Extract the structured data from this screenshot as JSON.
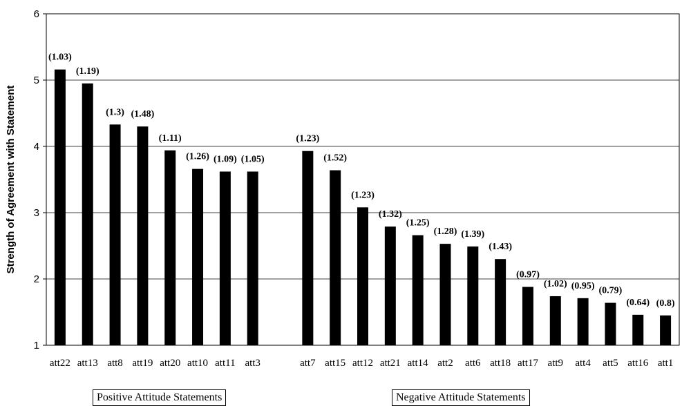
{
  "chart_data": {
    "type": "bar",
    "ylabel": "Strength of Agreement with Statement",
    "xlabel": "",
    "ylim": [
      1,
      6
    ],
    "yticks": [
      1,
      2,
      3,
      4,
      5,
      6
    ],
    "grid": true,
    "legend": "none",
    "bar_color": "#000000",
    "groups": [
      {
        "label": "Positive Attitude Statements",
        "categories": [
          "att22",
          "att13",
          "att8",
          "att19",
          "att20",
          "att10",
          "att11",
          "att3"
        ],
        "values": [
          5.16,
          4.95,
          4.33,
          4.3,
          3.94,
          3.66,
          3.62,
          3.62
        ],
        "sd_labels": [
          "(1.03)",
          "(1.19)",
          "(1.3)",
          "(1.48)",
          "(1.11)",
          "(1.26)",
          "(1.09)",
          "(1.05)"
        ]
      },
      {
        "label": "Negative Attitude Statements",
        "categories": [
          "att7",
          "att15",
          "att12",
          "att21",
          "att14",
          "att2",
          "att6",
          "att18",
          "att17",
          "att9",
          "att4",
          "att5",
          "att16",
          "att1"
        ],
        "values": [
          3.93,
          3.64,
          3.08,
          2.79,
          2.66,
          2.53,
          2.49,
          2.3,
          1.88,
          1.74,
          1.71,
          1.64,
          1.46,
          1.45
        ],
        "sd_labels": [
          "(1.23)",
          "(1.52)",
          "(1.23)",
          "(1.32)",
          "(1.25)",
          "(1.28)",
          "(1.39)",
          "(1.43)",
          "(0.97)",
          "(1.02)",
          "(0.95)",
          "(0.79)",
          "(0.64)",
          "(0.8)"
        ]
      }
    ]
  }
}
